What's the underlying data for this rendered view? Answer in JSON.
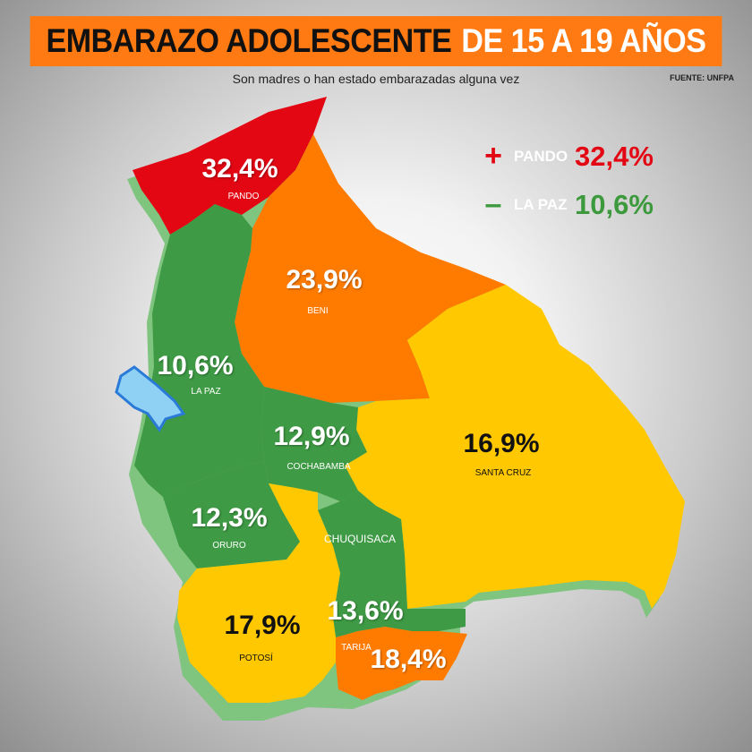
{
  "title_part1": "EMBARAZO ADOLESCENTE",
  "title_part2": "DE 15 A 19 AÑOS",
  "subtitle": "Son madres o han estado embarazadas alguna vez",
  "source": "FUENTE: UNFPA",
  "legend": {
    "max": {
      "sign": "+",
      "name": "PANDO",
      "value": "32,4%",
      "color": "#e30613"
    },
    "min": {
      "sign": "–",
      "name": "LA PAZ",
      "value": "10,6%",
      "color": "#3c9a3c"
    }
  },
  "colors": {
    "red": "#e30613",
    "orange": "#ff7b00",
    "yellow": "#ffc800",
    "green": "#3e9a44",
    "lake": "#8fd0f5",
    "banner": "#ff7a12"
  },
  "departments": [
    {
      "key": "pando",
      "name": "PANDO",
      "value": "32,4%",
      "fill": "#e30613"
    },
    {
      "key": "beni",
      "name": "BENI",
      "value": "23,9%",
      "fill": "#ff7b00"
    },
    {
      "key": "lapaz",
      "name": "LA PAZ",
      "value": "10,6%",
      "fill": "#3e9a44"
    },
    {
      "key": "cochabamba",
      "name": "COCHABAMBA",
      "value": "12,9%",
      "fill": "#3e9a44"
    },
    {
      "key": "santacruz",
      "name": "SANTA CRUZ",
      "value": "16,9%",
      "fill": "#ffc800"
    },
    {
      "key": "oruro",
      "name": "ORURO",
      "value": "12,3%",
      "fill": "#3e9a44"
    },
    {
      "key": "chuquisaca",
      "name": "CHUQUISACA",
      "value": "13,6%",
      "fill": "#3e9a44"
    },
    {
      "key": "potosi",
      "name": "POTOSÍ",
      "value": "17,9%",
      "fill": "#ffc800"
    },
    {
      "key": "tarija",
      "name": "TARIJA",
      "value": "18,4%",
      "fill": "#ff7b00"
    }
  ]
}
